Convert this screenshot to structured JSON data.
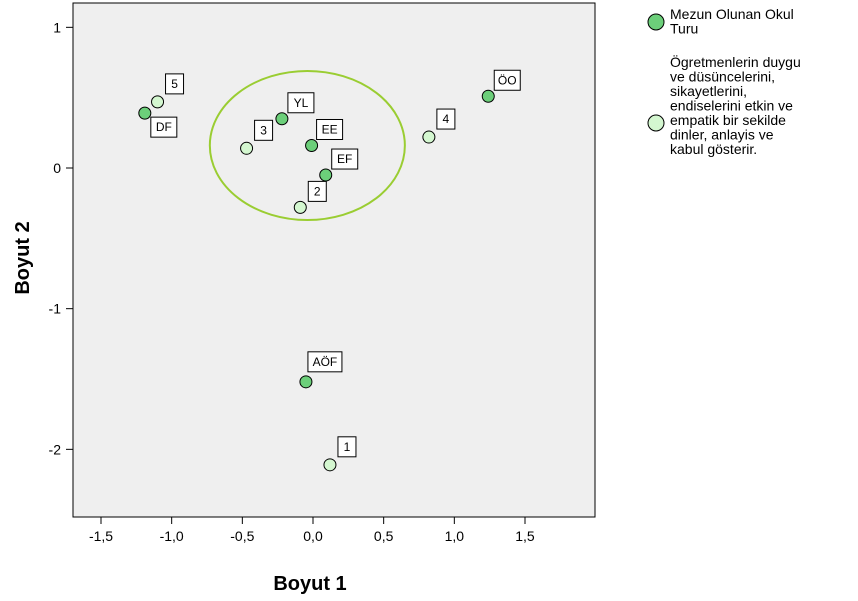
{
  "chart_data": {
    "type": "scatter",
    "xlabel": "Boyut 1",
    "ylabel": "Boyut 2",
    "xlim": [
      -1.7,
      2.0
    ],
    "ylim": [
      -2.5,
      1.1
    ],
    "x_ticks": [
      -1.5,
      -1.0,
      -0.5,
      0.0,
      0.5,
      1.0,
      1.5
    ],
    "x_tick_labels": [
      "-1,5",
      "-1,0",
      "-0,5",
      "0,0",
      "0,5",
      "1,0",
      "1,5"
    ],
    "y_ticks": [
      1,
      0,
      -1,
      -2
    ],
    "y_tick_labels": [
      "1",
      "0",
      "-1",
      "-2"
    ],
    "grid": false,
    "background": "#efefef",
    "series": [
      {
        "name": "Mezun Olunan Okul Turu",
        "color": "#6ccf7a",
        "points": [
          {
            "label": "ÖO",
            "x": 1.24,
            "y": 0.51
          },
          {
            "label": "YL",
            "x": -0.22,
            "y": 0.35
          },
          {
            "label": "EE",
            "x": -0.01,
            "y": 0.16
          },
          {
            "label": "EF",
            "x": 0.09,
            "y": -0.05
          },
          {
            "label": "DF",
            "x": -1.19,
            "y": 0.39
          },
          {
            "label": "AÖF",
            "x": -0.05,
            "y": -1.52
          }
        ]
      },
      {
        "name": "Ögretmenlerin duygu ve düsüncelerini, sikayetlerini, endiselerini etkin ve empatik bir sekilde dinler, anlayis ve kabul gösterir.",
        "color": "#d4f7d0",
        "points": [
          {
            "label": "5",
            "x": -1.1,
            "y": 0.47
          },
          {
            "label": "3",
            "x": -0.47,
            "y": 0.14
          },
          {
            "label": "4",
            "x": 0.82,
            "y": 0.22
          },
          {
            "label": "2",
            "x": -0.09,
            "y": -0.28
          },
          {
            "label": "1",
            "x": 0.12,
            "y": -2.11
          }
        ]
      }
    ],
    "annotation_circle": {
      "cx": -0.04,
      "cy": 0.16,
      "rx": 0.69,
      "ry": 0.53,
      "color": "#9acd32"
    },
    "legend_placement": "top-right",
    "legend": [
      {
        "lines": [
          "Mezun Olunan Okul",
          "Turu"
        ],
        "color": "#6ccf7a"
      },
      {
        "lines": [
          "Ögretmenlerin duygu",
          "ve düsüncelerini,",
          "sikayetlerini,",
          "endiselerini etkin ve",
          "empatik bir sekilde",
          "dinler, anlayis ve",
          "kabul gösterir."
        ],
        "color": "#d4f7d0"
      }
    ]
  }
}
